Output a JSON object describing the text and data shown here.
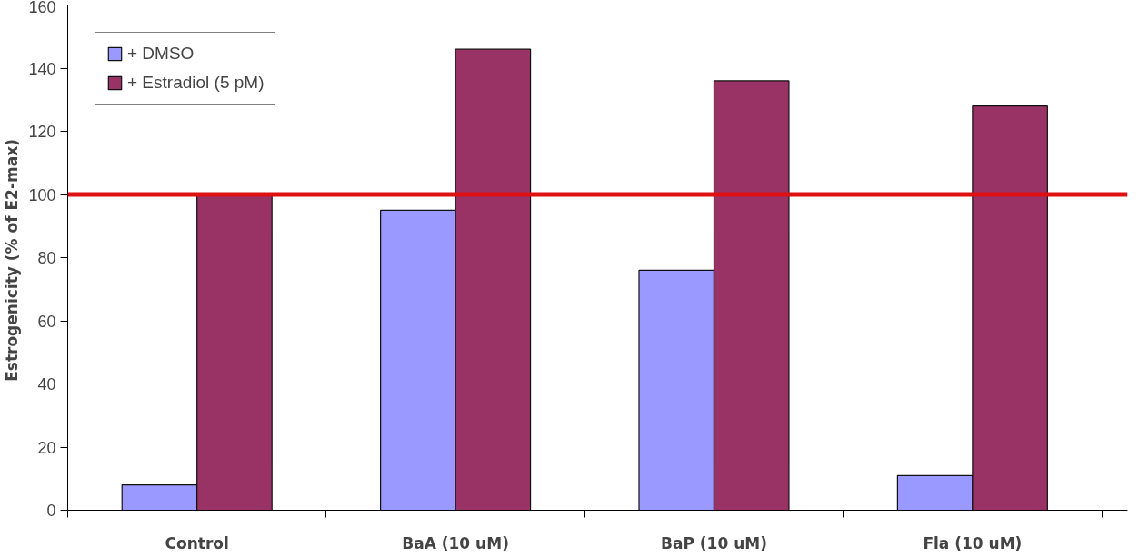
{
  "chart_data": {
    "type": "bar",
    "ylabel": "Estrogenicity (%  of E2-max)",
    "categories": [
      "Control",
      "BaA (10 uM)",
      "BaP (10 uM)",
      "Fla (10 uM)"
    ],
    "series": [
      {
        "name": "+ DMSO",
        "color": "#9999ff",
        "values": [
          8,
          95,
          76,
          11
        ]
      },
      {
        "name": "+ Estradiol (5 pM)",
        "color": "#993366",
        "values": [
          100,
          146,
          136,
          128
        ]
      }
    ],
    "ylim": [
      0,
      160
    ],
    "yticks": [
      0,
      20,
      40,
      60,
      80,
      100,
      120,
      140,
      160
    ],
    "ref_lines": [
      {
        "axis": "y",
        "value": 100,
        "color": "#dd1111"
      }
    ],
    "grid": false,
    "legend": "top left"
  }
}
